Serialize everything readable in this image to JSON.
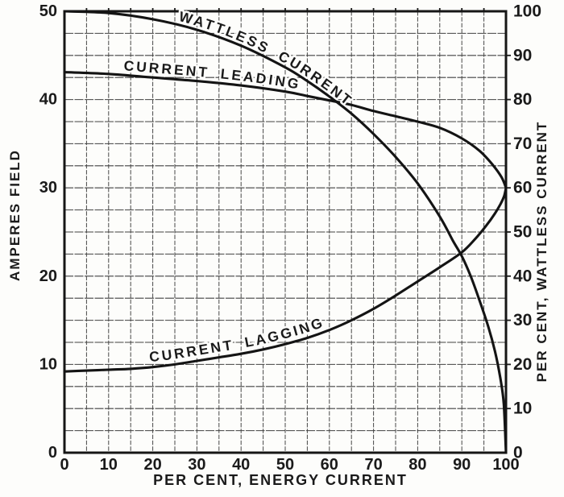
{
  "figure": {
    "background": "#fdfdfb",
    "ink": "#141414",
    "grid_color": "#474747"
  },
  "chart_data": {
    "type": "line",
    "title": "",
    "grid": {
      "step": 5,
      "on": true
    },
    "x_axis": {
      "label": "PER CENT, ENERGY CURRENT",
      "range": [
        0,
        100
      ],
      "ticks": [
        0,
        10,
        20,
        30,
        40,
        50,
        60,
        70,
        80,
        90,
        100
      ]
    },
    "y_left": {
      "label": "AMPERES FIELD",
      "range": [
        0,
        50
      ],
      "ticks": [
        0,
        10,
        20,
        30,
        40,
        50
      ]
    },
    "y_right": {
      "label": "PER CENT, WATTLESS CURRENT",
      "range": [
        0,
        100
      ],
      "ticks": [
        0,
        10,
        20,
        30,
        40,
        50,
        60,
        70,
        80,
        90,
        100
      ]
    },
    "series": [
      {
        "name": "WATTLESS CURRENT",
        "axis": "right",
        "points": [
          [
            0,
            100
          ],
          [
            10,
            99.6
          ],
          [
            20,
            98.2
          ],
          [
            30,
            95.8
          ],
          [
            40,
            92.2
          ],
          [
            50,
            87.3
          ],
          [
            55,
            84.2
          ],
          [
            60,
            80.7
          ],
          [
            65,
            76.8
          ],
          [
            70,
            72.2
          ],
          [
            75,
            67
          ],
          [
            80,
            61
          ],
          [
            85,
            53.5
          ],
          [
            88,
            48
          ],
          [
            90,
            44.5
          ],
          [
            92,
            40
          ],
          [
            94,
            34.5
          ],
          [
            96,
            28.5
          ],
          [
            97.5,
            23
          ],
          [
            98.7,
            17
          ],
          [
            99.5,
            11
          ],
          [
            100,
            0
          ]
        ]
      },
      {
        "name": "CURRENT LEADING",
        "axis": "left",
        "points": [
          [
            0,
            43.1
          ],
          [
            10,
            42.9
          ],
          [
            20,
            42.5
          ],
          [
            30,
            42.1
          ],
          [
            40,
            41.6
          ],
          [
            50,
            40.9
          ],
          [
            55,
            40.4
          ],
          [
            60,
            39.9
          ],
          [
            65,
            39.4
          ],
          [
            70,
            38.7
          ],
          [
            75,
            38.1
          ],
          [
            80,
            37.5
          ],
          [
            85,
            36.8
          ],
          [
            90,
            35.6
          ],
          [
            94,
            34.2
          ],
          [
            97,
            32.6
          ],
          [
            99,
            31.2
          ],
          [
            100,
            30
          ]
        ]
      },
      {
        "name": "CURRENT LAGGING",
        "axis": "left",
        "points": [
          [
            0,
            9.2
          ],
          [
            5,
            9.3
          ],
          [
            10,
            9.4
          ],
          [
            15,
            9.5
          ],
          [
            20,
            9.7
          ],
          [
            25,
            10
          ],
          [
            30,
            10.4
          ],
          [
            35,
            10.8
          ],
          [
            40,
            11.2
          ],
          [
            45,
            11.7
          ],
          [
            50,
            12.3
          ],
          [
            55,
            13
          ],
          [
            60,
            13.9
          ],
          [
            65,
            15
          ],
          [
            70,
            16.3
          ],
          [
            75,
            17.8
          ],
          [
            80,
            19.4
          ],
          [
            85,
            21
          ],
          [
            90,
            22.7
          ],
          [
            93,
            24.2
          ],
          [
            95.5,
            25.7
          ],
          [
            97.5,
            27.1
          ],
          [
            98.8,
            28.2
          ],
          [
            99.6,
            29.1
          ],
          [
            100,
            30
          ]
        ]
      }
    ],
    "curve_labels": [
      {
        "text": "WATTLESS CURRENT",
        "series": 0,
        "dy": -5,
        "startFrac": 0.165
      },
      {
        "text": "CURRENT LEADING",
        "series": 1,
        "dy": -6,
        "startFrac": 0.125
      },
      {
        "text": "CURRENT LAGGING",
        "series": 2,
        "dy": -7,
        "startFrac": 0.17
      }
    ]
  }
}
